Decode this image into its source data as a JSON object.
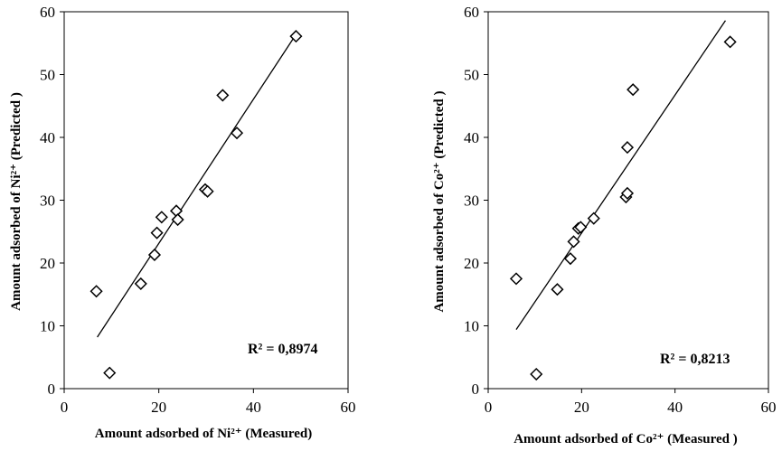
{
  "chart_data": [
    {
      "type": "scatter",
      "xlabel": "Amount adsorbed of Ni²⁺ (Measured)",
      "ylabel": "Amount adsorbed of Ni²⁺ (Predicted )",
      "annotation": "R² = 0,8974",
      "xlim": [
        0,
        60
      ],
      "ylim": [
        0,
        60
      ],
      "xticks": [
        "0",
        "20",
        "40",
        "60"
      ],
      "yticks": [
        "0",
        "10",
        "20",
        "30",
        "40",
        "50",
        "60"
      ],
      "grid": false,
      "marker": "diamond-open",
      "points": [
        {
          "x": 6.8,
          "y": 15.5
        },
        {
          "x": 9.6,
          "y": 2.5
        },
        {
          "x": 16.2,
          "y": 16.7
        },
        {
          "x": 19.1,
          "y": 21.3
        },
        {
          "x": 19.6,
          "y": 24.8
        },
        {
          "x": 20.6,
          "y": 27.3
        },
        {
          "x": 23.7,
          "y": 28.3
        },
        {
          "x": 24.0,
          "y": 26.9
        },
        {
          "x": 29.8,
          "y": 31.7
        },
        {
          "x": 30.3,
          "y": 31.4
        },
        {
          "x": 33.5,
          "y": 46.7
        },
        {
          "x": 36.5,
          "y": 40.7
        },
        {
          "x": 49.0,
          "y": 56.1
        }
      ],
      "trendline": {
        "x": [
          7.0,
          49.0
        ],
        "y": [
          8.2,
          56.4
        ]
      }
    },
    {
      "type": "scatter",
      "xlabel": "Amount adsorbed of Co²⁺ (Measured )",
      "ylabel": "Amount adsorbed of Co²⁺ (Predicted )",
      "annotation": "R² = 0,8213",
      "xlim": [
        0,
        60
      ],
      "ylim": [
        0,
        60
      ],
      "xticks": [
        "0",
        "20",
        "40",
        "60"
      ],
      "yticks": [
        "0",
        "10",
        "20",
        "30",
        "40",
        "50",
        "60"
      ],
      "grid": false,
      "marker": "diamond-open",
      "points": [
        {
          "x": 6.0,
          "y": 17.5
        },
        {
          "x": 10.3,
          "y": 2.3
        },
        {
          "x": 14.8,
          "y": 15.8
        },
        {
          "x": 17.6,
          "y": 20.7
        },
        {
          "x": 18.3,
          "y": 23.4
        },
        {
          "x": 19.3,
          "y": 25.5
        },
        {
          "x": 19.8,
          "y": 25.7
        },
        {
          "x": 22.6,
          "y": 27.1
        },
        {
          "x": 29.5,
          "y": 30.5
        },
        {
          "x": 29.8,
          "y": 31.1
        },
        {
          "x": 29.8,
          "y": 38.4
        },
        {
          "x": 31.0,
          "y": 47.6
        },
        {
          "x": 51.8,
          "y": 55.2
        }
      ],
      "trendline": {
        "x": [
          6.0,
          50.8
        ],
        "y": [
          9.4,
          58.6
        ]
      }
    }
  ]
}
